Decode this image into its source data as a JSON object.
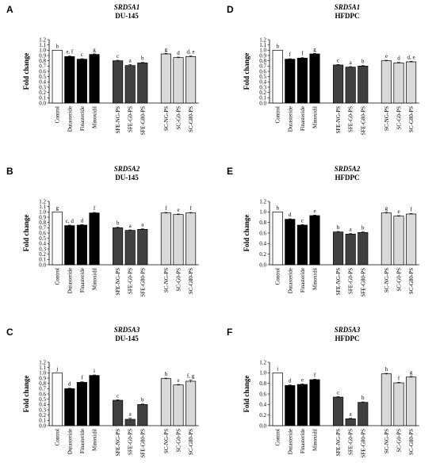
{
  "colors": {
    "control": "#ffffff",
    "reference": "#000000",
    "sfe": "#404040",
    "sc": "#d9d9d9",
    "stroke": "#000000"
  },
  "chart_data": [
    {
      "panel": "A",
      "type": "bar",
      "gene": "SRD5A1",
      "cell": "DU-145",
      "ylabel": "Fold change",
      "ylim": [
        0,
        1.2
      ],
      "yticks": [
        "0.0",
        "0.1",
        "0.2",
        "0.3",
        "0.4",
        "0.5",
        "0.6",
        "0.7",
        "0.8",
        "0.9",
        "1.0",
        "1.1",
        "1.2"
      ],
      "categories": [
        "Control",
        "Dutasteride",
        "Finasteride",
        "Minoxidil",
        "SFE-NG-PS",
        "SFE-G0-PS",
        "SFE-G80-PS",
        "SC-NG-PS",
        "SC-G0-PS",
        "SC-G80-PS"
      ],
      "values": [
        1.0,
        0.88,
        0.83,
        0.92,
        0.8,
        0.71,
        0.76,
        0.93,
        0.86,
        0.88
      ],
      "errors": [
        0,
        0.01,
        0.01,
        0.01,
        0.01,
        0.02,
        0.01,
        0.01,
        0.01,
        0.01
      ],
      "labels": [
        "h",
        "e, f",
        "c",
        "g",
        "c",
        "a",
        "b",
        "g",
        "d",
        "d, e"
      ]
    },
    {
      "panel": "D",
      "type": "bar",
      "gene": "SRD5A1",
      "cell": "HFDPC",
      "ylabel": "Fold change",
      "ylim": [
        0,
        1.2
      ],
      "yticks": [
        "0.0",
        "0.1",
        "0.2",
        "0.3",
        "0.4",
        "0.5",
        "0.6",
        "0.7",
        "0.8",
        "0.9",
        "1.0",
        "1.1",
        "1.2"
      ],
      "categories": [
        "Control",
        "Dutasteride",
        "Finasteride",
        "Minoxidil",
        "SFE-NG-PS",
        "SFE-G0-PS",
        "SFE-G80-PS",
        "SC-NG-PS",
        "SC-G0-PS",
        "SC-G80-PS"
      ],
      "values": [
        1.0,
        0.83,
        0.85,
        0.93,
        0.72,
        0.68,
        0.7,
        0.8,
        0.76,
        0.78
      ],
      "errors": [
        0,
        0.01,
        0.01,
        0.01,
        0.01,
        0.01,
        0.01,
        0.01,
        0.01,
        0.01
      ],
      "labels": [
        "h",
        "f",
        "f",
        "g",
        "c",
        "a",
        "b",
        "e",
        "d",
        "d, e"
      ]
    },
    {
      "panel": "B",
      "type": "bar",
      "gene": "SRD5A2",
      "cell": "DU-145",
      "ylabel": "Fold change",
      "ylim": [
        0,
        1.2
      ],
      "yticks": [
        "0.0",
        "0.1",
        "0.2",
        "0.3",
        "0.4",
        "0.5",
        "0.6",
        "0.7",
        "0.8",
        "0.9",
        "1.0",
        "1.1",
        "1.2"
      ],
      "categories": [
        "Control",
        "Dutasteride",
        "Finasteride",
        "Minoxidil",
        "SFE-NG-PS",
        "SFE-G0-PS",
        "SFE-G80-PS",
        "SC-NG-PS",
        "SC-G0-PS",
        "SC-G80-PS"
      ],
      "values": [
        1.0,
        0.74,
        0.75,
        0.98,
        0.7,
        0.65,
        0.67,
        0.98,
        0.95,
        0.98
      ],
      "errors": [
        0,
        0.01,
        0.01,
        0.01,
        0.01,
        0.01,
        0.01,
        0.01,
        0.01,
        0.01
      ],
      "labels": [
        "g",
        "c, d",
        "d",
        "f",
        "b",
        "a",
        "a",
        "f",
        "e",
        "f"
      ]
    },
    {
      "panel": "E",
      "type": "bar",
      "gene": "SRD5A2",
      "cell": "HFDPC",
      "ylabel": "Fold change",
      "ylim": [
        0,
        1.2
      ],
      "yticks": [
        "0.0",
        "0.2",
        "0.4",
        "0.6",
        "0.8",
        "1.0",
        "1.2"
      ],
      "categories": [
        "Control",
        "Dutasteride",
        "Finasteride",
        "Minoxidil",
        "SFE-NG-PS",
        "SFE-G0-PS",
        "SFE-G80-PS",
        "SC-NG-PS",
        "SC-G0-PS",
        "SC-G80-PS"
      ],
      "values": [
        1.0,
        0.86,
        0.75,
        0.93,
        0.62,
        0.58,
        0.61,
        0.98,
        0.92,
        0.96
      ],
      "errors": [
        0,
        0.01,
        0.01,
        0.01,
        0.01,
        0.01,
        0.01,
        0.01,
        0.01,
        0.01
      ],
      "labels": [
        "h",
        "d",
        "c",
        "e",
        "b",
        "a",
        "b",
        "g",
        "e",
        "f"
      ]
    },
    {
      "panel": "C",
      "type": "bar",
      "gene": "SRD5A3",
      "cell": "DU-145",
      "ylabel": "Fold change",
      "ylim": [
        0,
        1.2
      ],
      "yticks": [
        "0.0",
        "0.1",
        "0.2",
        "0.3",
        "0.4",
        "0.5",
        "0.6",
        "0.7",
        "0.8",
        "0.9",
        "1.0",
        "1.1",
        "1.2"
      ],
      "categories": [
        "Control",
        "Dutasteride",
        "Finasteride",
        "Minoxidil",
        "SFE-NG-PS",
        "SFE-G0-PS",
        "SFE-G80-PS",
        "SC-NG-PS",
        "SC-G0-PS",
        "SC-G80-PS"
      ],
      "values": [
        1.0,
        0.7,
        0.82,
        0.95,
        0.48,
        0.12,
        0.4,
        0.89,
        0.77,
        0.84
      ],
      "errors": [
        0,
        0.01,
        0.01,
        0.01,
        0.01,
        0.02,
        0.01,
        0.01,
        0.01,
        0.02
      ],
      "labels": [
        "j",
        "d",
        "f",
        "i",
        "c",
        "a",
        "b",
        "h",
        "e",
        "f, g"
      ]
    },
    {
      "panel": "F",
      "type": "bar",
      "gene": "SRD5A3",
      "cell": "HFDPC",
      "ylabel": "Fold change",
      "ylim": [
        0,
        1.2
      ],
      "yticks": [
        "0.0",
        "0.2",
        "0.4",
        "0.6",
        "0.8",
        "1.0",
        "1.2"
      ],
      "categories": [
        "Control",
        "Dutasteride",
        "Finasteride",
        "Minoxidil",
        "SFE-NG-PS",
        "SFE-G0-PS",
        "SFE-G80-PS",
        "SC-NG-PS",
        "SC-G0-PS",
        "SC-G80-PS"
      ],
      "values": [
        1.0,
        0.76,
        0.78,
        0.87,
        0.54,
        0.13,
        0.44,
        0.98,
        0.81,
        0.92
      ],
      "errors": [
        0,
        0.01,
        0.01,
        0.01,
        0.01,
        0.01,
        0.01,
        0.01,
        0.01,
        0.01
      ],
      "labels": [
        "i",
        "d",
        "e",
        "f",
        "c",
        "a",
        "b",
        "h",
        "f",
        "g"
      ]
    }
  ]
}
